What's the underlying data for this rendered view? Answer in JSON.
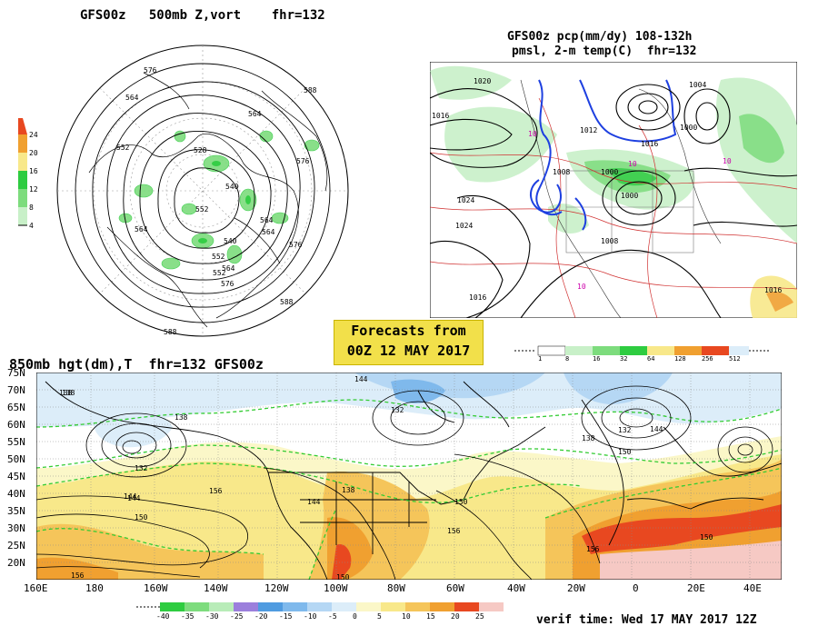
{
  "polar": {
    "title": "GFS00z   500mb Z,vort    fhr=132",
    "colorbar_ticks": [
      "24",
      "20",
      "16",
      "12",
      "8",
      "4"
    ],
    "contour_labels": [
      "576",
      "588",
      "564",
      "552",
      "540",
      "528",
      "552",
      "576",
      "564",
      "564",
      "552",
      "576",
      "564",
      "576",
      "588",
      "564",
      "540",
      "552",
      "564",
      "588"
    ]
  },
  "precip": {
    "title_line1": "GFS00z pcp(mm/dy) 108-132h",
    "title_line2": "pmsl, 2-m temp(C)  fhr=132",
    "pressure_labels": [
      "1020",
      "1016",
      "1012",
      "1004",
      "1008",
      "1000",
      "1024",
      "1016",
      "1008",
      "1024",
      "1000",
      "1016",
      "1000",
      "1016"
    ],
    "temp_labels": [
      "10",
      "10",
      "10",
      "10"
    ],
    "colorbar_ticks": [
      "1",
      "8",
      "16",
      "32",
      "64",
      "128",
      "256",
      "512"
    ]
  },
  "banner": {
    "line1": "Forecasts from",
    "line2": "00Z 12 MAY 2017"
  },
  "h850": {
    "title": "850mb hgt(dm),T  fhr=132 GFS00z",
    "lat_labels": [
      "75N",
      "70N",
      "65N",
      "60N",
      "55N",
      "50N",
      "45N",
      "40N",
      "35N",
      "30N",
      "25N",
      "20N"
    ],
    "lon_labels": [
      "160E",
      "180",
      "160W",
      "140W",
      "120W",
      "100W",
      "80W",
      "60W",
      "40W",
      "20W",
      "0",
      "20E",
      "40E"
    ],
    "height_labels": [
      "138",
      "132",
      "138",
      "144",
      "150",
      "156",
      "132",
      "144",
      "138",
      "132",
      "138",
      "150",
      "144",
      "150",
      "156",
      "156",
      "150",
      "150",
      "156",
      "144",
      "144",
      "138"
    ],
    "temp_scale": [
      "-40",
      "-35",
      "-30",
      "-25",
      "-20",
      "-15",
      "-10",
      "-5",
      "0",
      "5",
      "10",
      "15",
      "20",
      "25"
    ],
    "temp_colors": [
      "#2ecc40",
      "#7ddc7d",
      "#b8ecb8",
      "#9b7fdc",
      "#4f9be0",
      "#7fb9ec",
      "#b5d7f4",
      "#dcedf9",
      "#fbf7c8",
      "#f8e88a",
      "#f5c55a",
      "#f0a030",
      "#e84820",
      "#f6c9c4"
    ]
  },
  "verif": {
    "text": "verif time: Wed 17 MAY 2017 12Z"
  },
  "colors": {
    "accent_yellow": "#f2e04a",
    "green_dashed": "#33cc33"
  }
}
